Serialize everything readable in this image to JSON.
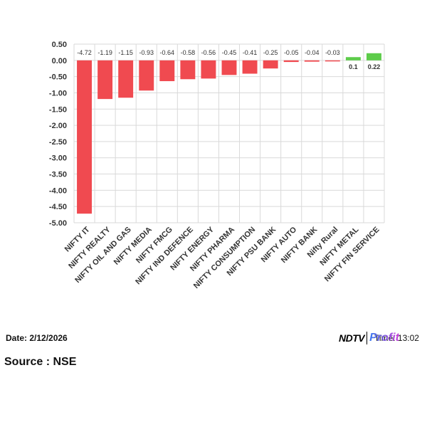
{
  "chart_data": {
    "type": "bar",
    "categories": [
      "NIFTY IT",
      "NIFTY REALTY",
      "NIFTY OIL AND GAS",
      "NIFTY MEDIA",
      "NIFTY FMCG",
      "NIFTY IND DEFENCE",
      "NIFTY ENERGY",
      "NIFTY PHARMA",
      "NIFTY CONSUMPTION",
      "NIFTY PSU BANK",
      "NIFTY AUTO",
      "NIFTY BANK",
      "Nifty Rural",
      "NIFTY METAL",
      "NIFTY FIN SERVICE"
    ],
    "values": [
      -4.72,
      -1.19,
      -1.15,
      -0.93,
      -0.64,
      -0.58,
      -0.56,
      -0.45,
      -0.41,
      -0.25,
      -0.05,
      -0.04,
      -0.03,
      0.1,
      0.22
    ],
    "data_labels": [
      "-4.72",
      "-1.19",
      "-1.15",
      "-0.93",
      "-0.64",
      "-0.58",
      "-0.56",
      "-0.45",
      "-0.41",
      "-0.25",
      "-0.05",
      "-0.04",
      "-0.03",
      "0.1",
      "0.22"
    ],
    "yticks": [
      "0.50",
      "0.00",
      "-0.50",
      "-1.00",
      "-1.50",
      "-2.00",
      "-2.50",
      "-3.00",
      "-3.50",
      "-4.00",
      "-4.50",
      "-5.00"
    ],
    "ylim": [
      -5.0,
      0.5
    ],
    "grid": true,
    "colors": {
      "negative": "#f04a50",
      "positive": "#5dcc4a",
      "grid": "#d9d9d9"
    }
  },
  "footer": {
    "date": "Date: 2/12/2026",
    "source": "Source : NSE",
    "time": "Time: 13:02"
  },
  "logo": {
    "left": "NDTV",
    "right": "Profit"
  }
}
